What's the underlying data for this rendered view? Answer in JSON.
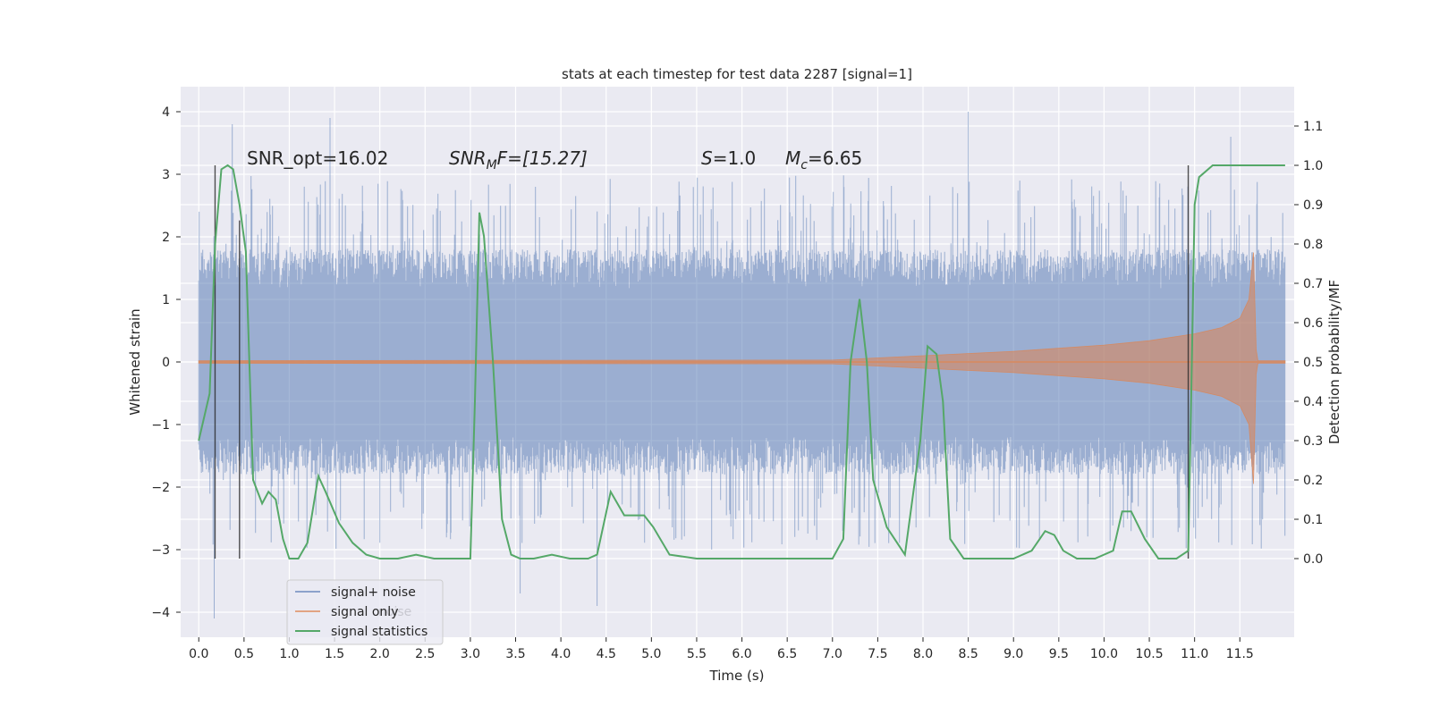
{
  "chart_data": {
    "type": "line",
    "title": "stats at each timestep for test data 2287 [signal=1]",
    "xlabel": "Time (s)",
    "ylabel": "Whitened strain",
    "y2label": "Detection probability/MF",
    "xlim": [
      -0.2,
      12.1
    ],
    "ylim": [
      -4.4,
      4.4
    ],
    "y2lim": [
      -0.2,
      1.2
    ],
    "grid": true,
    "legend_position": "lower-left",
    "xticks": [
      "0.0",
      "0.5",
      "1.0",
      "1.5",
      "2.0",
      "2.5",
      "3.0",
      "3.5",
      "4.0",
      "4.5",
      "5.0",
      "5.5",
      "6.0",
      "6.5",
      "7.0",
      "7.5",
      "8.0",
      "8.5",
      "9.0",
      "9.5",
      "10.0",
      "10.5",
      "11.0",
      "11.5"
    ],
    "yticks": [
      "4",
      "3",
      "2",
      "1",
      "0",
      "−1",
      "−2",
      "−3",
      "−4"
    ],
    "y2ticks": [
      "1.1",
      "1.0",
      "0.9",
      "0.8",
      "0.7",
      "0.6",
      "0.5",
      "0.4",
      "0.3",
      "0.2",
      "0.1",
      "0.0"
    ],
    "annotations": {
      "snr_opt": "SNR_opt=16.02",
      "snr_mf_main": "SNR",
      "snr_mf_sub": "M",
      "snr_mf_rest": "F=[15.27]",
      "s_main": "S",
      "s_rest": "=1.0",
      "mc_main": "M",
      "mc_sub": "c",
      "mc_rest": "=6.65"
    },
    "colors": {
      "noise": "#4c72b0",
      "signal": "#dd8452",
      "stats": "#55a868",
      "background": "#eaeaf2",
      "vline": "#262626"
    },
    "series": [
      {
        "name": "signal+ noise",
        "kind": "noisy-band",
        "x_range": [
          0.0,
          12.0
        ],
        "typical_amplitude": 1.8,
        "peaks": [
          [
            0.37,
            3.8
          ],
          [
            1.45,
            3.9
          ],
          [
            8.5,
            4.0
          ],
          [
            11.4,
            3.6
          ],
          [
            0.17,
            -4.1
          ],
          [
            4.4,
            -3.9
          ],
          [
            3.55,
            -3.7
          ]
        ]
      },
      {
        "name": "signal only",
        "kind": "chirp-envelope",
        "x": [
          0.0,
          7.0,
          8.0,
          9.0,
          10.0,
          10.5,
          11.0,
          11.3,
          11.5,
          11.6,
          11.65,
          11.68,
          11.7,
          12.0
        ],
        "upper": [
          0.02,
          0.03,
          0.1,
          0.17,
          0.27,
          0.34,
          0.45,
          0.55,
          0.7,
          1.0,
          1.75,
          0.2,
          0.02,
          0.02
        ],
        "lower": [
          -0.02,
          -0.03,
          -0.1,
          -0.17,
          -0.27,
          -0.34,
          -0.45,
          -0.55,
          -0.7,
          -1.0,
          -1.95,
          -0.2,
          -0.02,
          -0.02
        ]
      },
      {
        "name": "signal statistics",
        "axis": "right",
        "x": [
          0.0,
          0.12,
          0.18,
          0.25,
          0.32,
          0.38,
          0.45,
          0.52,
          0.6,
          0.7,
          0.77,
          0.85,
          0.93,
          1.0,
          1.1,
          1.2,
          1.32,
          1.4,
          1.55,
          1.7,
          1.85,
          2.0,
          2.2,
          2.4,
          2.6,
          2.8,
          3.0,
          3.05,
          3.1,
          3.15,
          3.25,
          3.35,
          3.45,
          3.55,
          3.7,
          3.9,
          4.1,
          4.3,
          4.4,
          4.55,
          4.7,
          4.82,
          4.92,
          5.02,
          5.2,
          5.5,
          5.8,
          6.0,
          6.2,
          6.5,
          6.8,
          7.0,
          7.12,
          7.2,
          7.3,
          7.38,
          7.45,
          7.6,
          7.8,
          7.97,
          8.05,
          8.15,
          8.22,
          8.3,
          8.45,
          8.7,
          9.0,
          9.2,
          9.35,
          9.45,
          9.55,
          9.7,
          9.9,
          10.1,
          10.2,
          10.3,
          10.45,
          10.6,
          10.8,
          10.93,
          10.97,
          11.0,
          11.05,
          11.2,
          11.5,
          11.7,
          12.0
        ],
        "y": [
          0.3,
          0.42,
          0.8,
          0.99,
          1.0,
          0.99,
          0.9,
          0.78,
          0.2,
          0.14,
          0.17,
          0.15,
          0.05,
          0.0,
          0.0,
          0.04,
          0.21,
          0.17,
          0.09,
          0.04,
          0.01,
          0.0,
          0.0,
          0.01,
          0.0,
          0.0,
          0.0,
          0.4,
          0.88,
          0.82,
          0.5,
          0.1,
          0.01,
          0.0,
          0.0,
          0.01,
          0.0,
          0.0,
          0.01,
          0.17,
          0.11,
          0.11,
          0.11,
          0.08,
          0.01,
          0.0,
          0.0,
          0.0,
          0.0,
          0.0,
          0.0,
          0.0,
          0.05,
          0.5,
          0.66,
          0.5,
          0.2,
          0.08,
          0.01,
          0.3,
          0.54,
          0.52,
          0.4,
          0.05,
          0.0,
          0.0,
          0.0,
          0.02,
          0.07,
          0.06,
          0.02,
          0.0,
          0.0,
          0.02,
          0.12,
          0.12,
          0.05,
          0.0,
          0.0,
          0.02,
          0.5,
          0.9,
          0.97,
          1.0,
          1.0,
          1.0,
          1.0
        ]
      }
    ],
    "vertical_lines": [
      {
        "x": 0.18,
        "y2_bottom": 0.0,
        "y2_top": 1.0
      },
      {
        "x": 0.45,
        "y2_bottom": 0.0,
        "y2_top": 0.86
      },
      {
        "x": 10.93,
        "y2_bottom": 0.0,
        "y2_top": 1.0
      }
    ],
    "legend": {
      "items": [
        "signal+ noise",
        "signal only",
        "signal statistics"
      ],
      "overlap_text": "noise"
    }
  }
}
